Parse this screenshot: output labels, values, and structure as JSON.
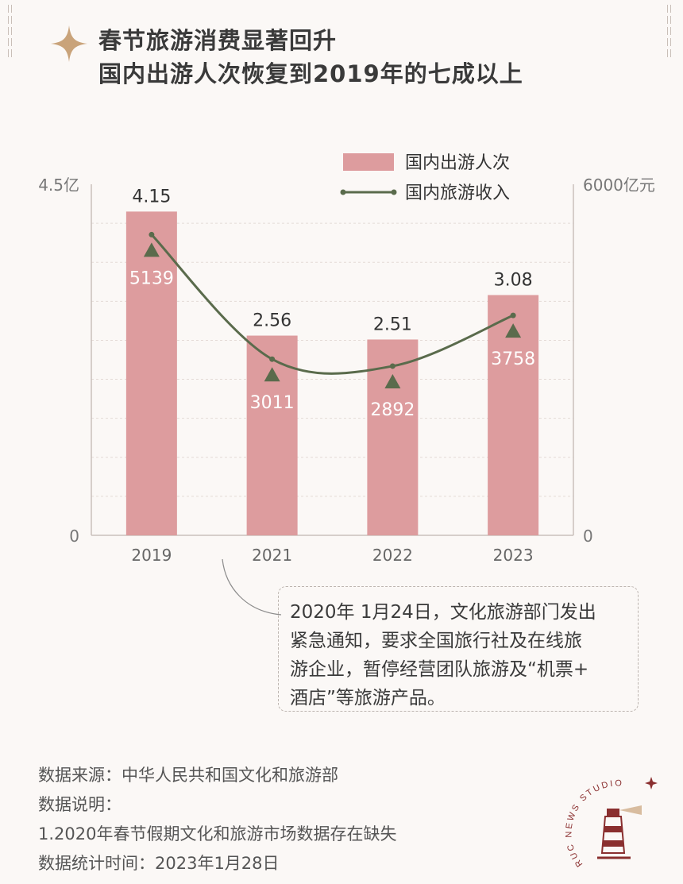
{
  "title": {
    "line1": "春节旅游消费显著回升",
    "line2": "国内出游人次恢复到2019年的七成以上"
  },
  "colors": {
    "bar": "#dd9c9e",
    "line": "#5a6b4c",
    "marker": "#5a6b4c",
    "accent_star": "#c9a37a",
    "grid": "#e4dad6",
    "axis": "#c9c0bc"
  },
  "chart_data": {
    "type": "bar",
    "categories": [
      "2019",
      "2021",
      "2022",
      "2023"
    ],
    "series": [
      {
        "name": "国内出游人次",
        "type": "bar",
        "axis": "left",
        "values": [
          4.15,
          2.56,
          2.51,
          3.08
        ],
        "labels": [
          "4.15",
          "2.56",
          "2.51",
          "3.08"
        ]
      },
      {
        "name": "国内旅游收入",
        "type": "line",
        "axis": "right",
        "values": [
          5139,
          3011,
          2892,
          3758
        ],
        "labels": [
          "5139",
          "3011",
          "2892",
          "3758"
        ]
      }
    ],
    "left_axis": {
      "max_label": "4.5亿",
      "min_label": "0",
      "ylim": [
        0,
        4.5
      ]
    },
    "right_axis": {
      "max_label": "6000亿元",
      "min_label": "0",
      "ylim": [
        0,
        6000
      ]
    },
    "legend_position": "top-right",
    "grid": true
  },
  "note": {
    "lines": [
      "2020年 1月24日，文化旅游部门发出",
      "紧急通知，要求全国旅行社及在线旅",
      "游企业，暂停经营团队旅游及“机票+",
      "酒店”等旅游产品。"
    ]
  },
  "footer": {
    "source": "数据来源：中华人民共和国文化和旅游部",
    "explain_title": "数据说明：",
    "explain_item": "1.2020年春节假期文化和旅游市场数据存在缺失",
    "stat_time": "数据统计时间：2023年1月28日"
  },
  "logo": {
    "text": "RUC NEWS STUDIO",
    "icon": "lighthouse-icon"
  }
}
